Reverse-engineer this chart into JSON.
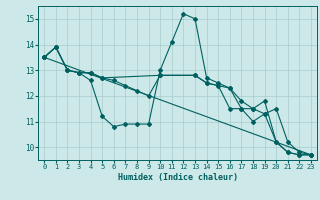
{
  "xlabel": "Humidex (Indice chaleur)",
  "xlim": [
    -0.5,
    23.5
  ],
  "ylim": [
    9.5,
    15.5
  ],
  "yticks": [
    10,
    11,
    12,
    13,
    14,
    15
  ],
  "xticks": [
    0,
    1,
    2,
    3,
    4,
    5,
    6,
    7,
    8,
    9,
    10,
    11,
    12,
    13,
    14,
    15,
    16,
    17,
    18,
    19,
    20,
    21,
    22,
    23
  ],
  "bg_color": "#cde8e8",
  "grid_color": "#a8cccc",
  "line_color": "#006060",
  "lines": [
    {
      "x": [
        0,
        1,
        2,
        3,
        4,
        5,
        6,
        7,
        8,
        9,
        10,
        11,
        12,
        13,
        14,
        15,
        16,
        17,
        18,
        19,
        20,
        21,
        22,
        23
      ],
      "y": [
        13.5,
        13.9,
        13.0,
        12.9,
        12.6,
        11.2,
        10.8,
        10.9,
        10.9,
        10.9,
        13.0,
        14.1,
        15.2,
        15.0,
        12.7,
        12.5,
        12.3,
        11.5,
        11.5,
        11.8,
        10.2,
        9.8,
        9.7,
        9.7
      ]
    },
    {
      "x": [
        0,
        23
      ],
      "y": [
        13.5,
        9.7
      ]
    },
    {
      "x": [
        0,
        1,
        2,
        3,
        4,
        5,
        10,
        13,
        14,
        16,
        17,
        18,
        19,
        20,
        21,
        22,
        23
      ],
      "y": [
        13.5,
        13.9,
        13.0,
        12.9,
        12.9,
        12.7,
        12.8,
        12.8,
        12.5,
        12.3,
        11.8,
        11.5,
        11.3,
        11.5,
        10.2,
        9.8,
        9.7
      ]
    },
    {
      "x": [
        0,
        1,
        2,
        3,
        4,
        5,
        6,
        7,
        8,
        9,
        10,
        13,
        14,
        15,
        16,
        17,
        18,
        19,
        20,
        21,
        22,
        23
      ],
      "y": [
        13.5,
        13.9,
        13.0,
        12.9,
        12.9,
        12.7,
        12.6,
        12.4,
        12.2,
        12.0,
        12.8,
        12.8,
        12.5,
        12.4,
        11.5,
        11.5,
        11.0,
        11.3,
        10.2,
        9.8,
        9.7,
        9.7
      ]
    }
  ]
}
